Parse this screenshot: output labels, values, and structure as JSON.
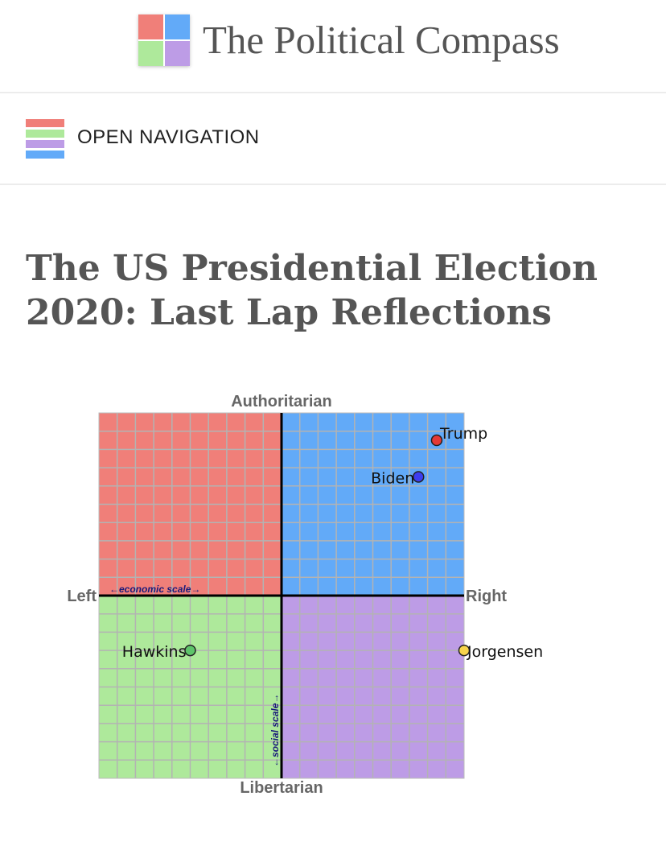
{
  "site": {
    "title": "The Political Compass",
    "logo_colors": [
      "#f07f79",
      "#62aaf8",
      "#aee99b",
      "#bd9ce6"
    ]
  },
  "nav": {
    "label": "OPEN NAVIGATION",
    "icon": "hamburger-icon",
    "bar_colors": [
      "#f07f79",
      "#aee99b",
      "#bd9ce6",
      "#62aaf8"
    ]
  },
  "article": {
    "title": "The US Presidential Election 2020: Last Lap Reflections"
  },
  "chart_data": {
    "type": "scatter",
    "title": "",
    "xlabel_left": "Left",
    "xlabel_right": "Right",
    "ylabel_top": "Authoritarian",
    "ylabel_bottom": "Libertarian",
    "economic_scale_label": "←economic scale→",
    "social_scale_label": "←social scale→",
    "xlim": [
      -10,
      10
    ],
    "ylim": [
      -10,
      10
    ],
    "grid": true,
    "quadrant_colors": {
      "auth_left": "#f07f79",
      "auth_right": "#62aaf8",
      "lib_left": "#aee99b",
      "lib_right": "#bd9ce6"
    },
    "points": [
      {
        "name": "Trump",
        "x": 8.5,
        "y": 8.5,
        "color": "#e53935",
        "label_side": "right"
      },
      {
        "name": "Biden",
        "x": 7.5,
        "y": 6.5,
        "color": "#3d3df0",
        "label_side": "left"
      },
      {
        "name": "Hawkins",
        "x": -5.0,
        "y": -3.0,
        "color": "#5ec46a",
        "label_side": "left"
      },
      {
        "name": "Jorgensen",
        "x": 10.0,
        "y": -3.0,
        "color": "#f7d44c",
        "label_side": "right"
      }
    ]
  }
}
